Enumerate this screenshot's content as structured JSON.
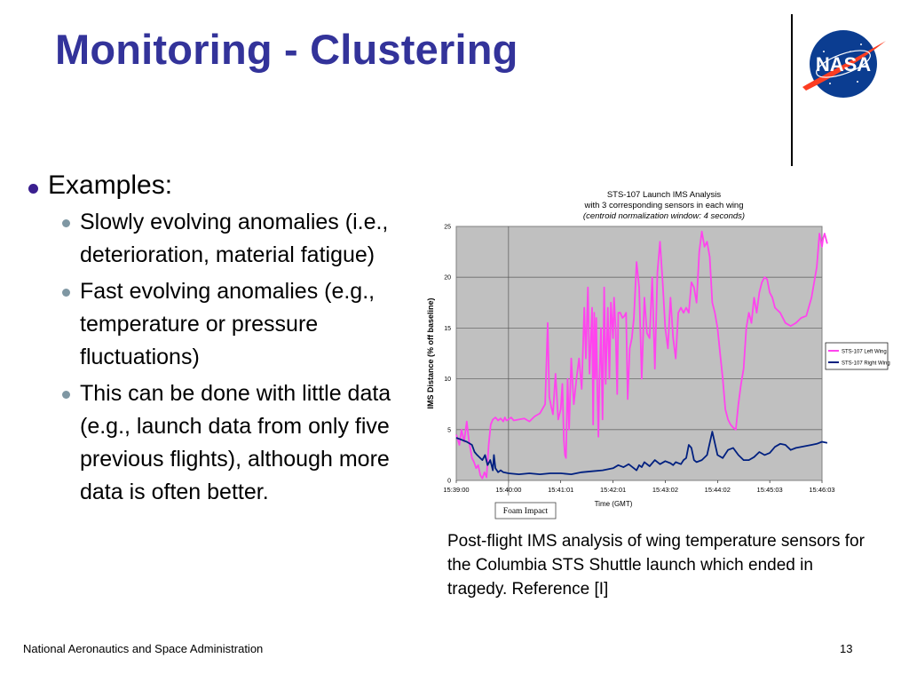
{
  "slide": {
    "title": "Monitoring - Clustering",
    "bullet": "Examples:",
    "subbullets": [
      "Slowly evolving anomalies (i.e., deterioration, material fatigue)",
      "Fast evolving anomalies (e.g., temperature or pressure fluctuations)",
      "This can be done with little data (e.g., launch data from only five previous flights), although more data is often better."
    ],
    "caption": "Post-flight IMS analysis of wing temperature sensors for the Columbia STS Shuttle launch which ended in tragedy. Reference [I]",
    "footer": "National Aeronautics and Space Administration",
    "page_number": "13",
    "logo_text": "NASA"
  },
  "chart_data": {
    "type": "line",
    "title": "STS-107 Launch IMS Analysis",
    "subtitle": "with 3 corresponding sensors in each wing",
    "note": "(centroid normalization window: 4 seconds)",
    "xlabel": "Time (GMT)",
    "ylabel": "IMS Distance (% off baseline)",
    "ylim": [
      0,
      25
    ],
    "yticks": [
      "0",
      "5",
      "10",
      "15",
      "20",
      "25"
    ],
    "xticks": [
      "15:39:00",
      "15:40:00",
      "15:41:01",
      "15:42:01",
      "15:43:02",
      "15:44:02",
      "15:45:03",
      "15:46:03"
    ],
    "annotation": "Foam Impact",
    "annotation_x": 1,
    "grid": true,
    "legend_position": "right",
    "background_color": "#c0c0c0",
    "series": [
      {
        "name": "STS-107 Left Wing",
        "color": "#ff44ee",
        "x": [
          0,
          0.06,
          0.1,
          0.15,
          0.2,
          0.24,
          0.28,
          0.3,
          0.34,
          0.38,
          0.42,
          0.46,
          0.5,
          0.54,
          0.58,
          0.62,
          0.66,
          0.7,
          0.75,
          0.8,
          0.85,
          0.9,
          0.93,
          0.96,
          1.0,
          1.05,
          1.1,
          1.2,
          1.3,
          1.4,
          1.5,
          1.6,
          1.7,
          1.75,
          1.78,
          1.82,
          1.85,
          1.9,
          1.95,
          2.0,
          2.03,
          2.06,
          2.08,
          2.1,
          2.13,
          2.16,
          2.2,
          2.25,
          2.3,
          2.35,
          2.4,
          2.45,
          2.48,
          2.52,
          2.55,
          2.6,
          2.62,
          2.64,
          2.66,
          2.68,
          2.7,
          2.72,
          2.74,
          2.77,
          2.8,
          2.83,
          2.86,
          2.9,
          2.93,
          2.96,
          3.0,
          3.02,
          3.05,
          3.08,
          3.1,
          3.14,
          3.18,
          3.22,
          3.25,
          3.28,
          3.32,
          3.36,
          3.4,
          3.45,
          3.5,
          3.55,
          3.6,
          3.65,
          3.7,
          3.75,
          3.8,
          3.85,
          3.9,
          3.95,
          4.0,
          4.05,
          4.1,
          4.15,
          4.2,
          4.25,
          4.3,
          4.35,
          4.4,
          4.45,
          4.5,
          4.55,
          4.6,
          4.65,
          4.7,
          4.75,
          4.8,
          4.85,
          4.9,
          4.95,
          5.0,
          5.05,
          5.1,
          5.15,
          5.2,
          5.25,
          5.3,
          5.35,
          5.4,
          5.45,
          5.5,
          5.55,
          5.6,
          5.65,
          5.7,
          5.75,
          5.8,
          5.85,
          5.9,
          5.95,
          6.0,
          6.05,
          6.1,
          6.2,
          6.3,
          6.4,
          6.5,
          6.6,
          6.7,
          6.8,
          6.9,
          6.95,
          7.0,
          7.02,
          7.05,
          7.1
        ],
        "y": [
          4.5,
          3.5,
          5.0,
          3.8,
          5.8,
          4.0,
          2.8,
          2.2,
          1.8,
          1.2,
          1.5,
          0.5,
          0.2,
          0.8,
          0.3,
          3.5,
          5.5,
          6.0,
          6.2,
          5.9,
          6.1,
          5.8,
          6.2,
          5.9,
          6.0,
          6.2,
          5.9,
          6.0,
          6.1,
          5.8,
          6.3,
          6.6,
          7.5,
          15.5,
          8.2,
          7.2,
          6.5,
          10.5,
          6.0,
          7.0,
          9.5,
          4.0,
          2.5,
          2.2,
          10.0,
          5.0,
          12.0,
          7.5,
          10.0,
          12.0,
          9.0,
          17.0,
          12.0,
          19.0,
          10.5,
          17.0,
          5.5,
          16.5,
          10.0,
          16.0,
          9.0,
          4.3,
          10.0,
          15.0,
          6.0,
          19.0,
          9.5,
          17.0,
          10.0,
          17.5,
          14.0,
          18.0,
          15.0,
          8.5,
          16.5,
          16.5,
          16.0,
          16.2,
          16.5,
          8.0,
          13.0,
          14.0,
          16.0,
          21.5,
          19.0,
          10.0,
          18.0,
          14.5,
          14.0,
          20.0,
          11.0,
          20.5,
          23.5,
          19.5,
          15.0,
          13.0,
          18.0,
          14.0,
          12.0,
          16.5,
          17.0,
          16.5,
          17.0,
          16.5,
          19.5,
          19.0,
          17.5,
          22.5,
          24.5,
          23.0,
          23.5,
          22.0,
          17.5,
          16.5,
          15.0,
          12.5,
          10.0,
          7.0,
          6.0,
          5.5,
          5.2,
          5.0,
          7.5,
          9.5,
          11.0,
          15.0,
          16.5,
          15.5,
          18.0,
          16.5,
          18.5,
          19.5,
          20.0,
          19.8,
          18.5,
          18.0,
          17.0,
          16.5,
          15.5,
          15.2,
          15.5,
          16.0,
          16.2,
          18.0,
          21.0,
          24.3,
          23.0,
          23.8,
          24.3,
          23.3
        ]
      },
      {
        "name": "STS-107 Right Wing",
        "color": "#002080",
        "x": [
          0,
          0.1,
          0.2,
          0.3,
          0.35,
          0.4,
          0.5,
          0.55,
          0.6,
          0.65,
          0.7,
          0.72,
          0.75,
          0.8,
          0.85,
          0.9,
          1.0,
          1.2,
          1.4,
          1.6,
          1.8,
          2.0,
          2.2,
          2.4,
          2.6,
          2.8,
          3.0,
          3.1,
          3.2,
          3.3,
          3.4,
          3.45,
          3.5,
          3.55,
          3.6,
          3.7,
          3.8,
          3.9,
          4.0,
          4.1,
          4.15,
          4.2,
          4.3,
          4.35,
          4.4,
          4.45,
          4.5,
          4.55,
          4.6,
          4.7,
          4.8,
          4.9,
          5.0,
          5.1,
          5.2,
          5.3,
          5.4,
          5.5,
          5.6,
          5.7,
          5.8,
          5.9,
          6.0,
          6.1,
          6.2,
          6.3,
          6.4,
          6.5,
          6.6,
          6.7,
          6.8,
          6.9,
          7.0,
          7.1
        ],
        "y": [
          4.2,
          4.0,
          3.8,
          3.5,
          2.8,
          2.5,
          2.0,
          2.5,
          1.5,
          2.0,
          1.0,
          2.5,
          1.2,
          0.8,
          1.0,
          0.8,
          0.7,
          0.6,
          0.7,
          0.6,
          0.7,
          0.7,
          0.6,
          0.8,
          0.9,
          1.0,
          1.2,
          1.5,
          1.3,
          1.6,
          1.2,
          1.0,
          1.5,
          1.3,
          1.8,
          1.4,
          2.0,
          1.6,
          1.9,
          1.7,
          1.5,
          1.8,
          1.6,
          2.0,
          2.2,
          3.5,
          3.2,
          2.0,
          1.8,
          2.0,
          2.5,
          4.8,
          2.5,
          2.2,
          3.0,
          3.2,
          2.5,
          2.0,
          2.0,
          2.3,
          2.8,
          2.5,
          2.7,
          3.3,
          3.6,
          3.5,
          3.0,
          3.2,
          3.3,
          3.4,
          3.5,
          3.6,
          3.8,
          3.7
        ]
      }
    ]
  }
}
